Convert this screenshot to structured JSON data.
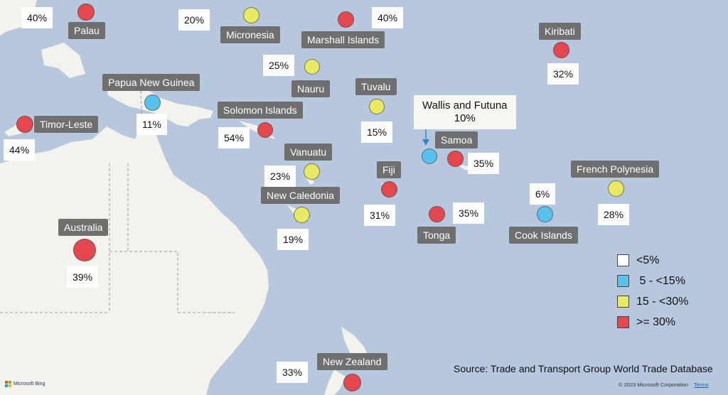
{
  "map": {
    "regions": [
      {
        "name": "Palau",
        "value": "40%",
        "category": ">= 30%"
      },
      {
        "name": "Micronesia",
        "value": "20%",
        "category": "15 - <30%"
      },
      {
        "name": "Marshall Islands",
        "value": "40%",
        "category": ">= 30%"
      },
      {
        "name": "Kiribati",
        "value": "32%",
        "category": ">= 30%"
      },
      {
        "name": "Nauru",
        "value": "25%",
        "category": "15 - <30%"
      },
      {
        "name": "Papua New Guinea",
        "value": "11%",
        "category": "5 - <15%"
      },
      {
        "name": "Tuvalu",
        "value": "15%",
        "category": "15 - <30%"
      },
      {
        "name": "Timor-Leste",
        "value": "44%",
        "category": ">= 30%"
      },
      {
        "name": "Solomon Islands",
        "value": "54%",
        "category": ">= 30%"
      },
      {
        "name": "Wallis and Futuna",
        "value": "10%",
        "category": "5 - <15%"
      },
      {
        "name": "Samoa",
        "value": "35%",
        "category": ">= 30%"
      },
      {
        "name": "Vanuatu",
        "value": "23%",
        "category": "15 - <30%"
      },
      {
        "name": "Fiji",
        "value": "31%",
        "category": ">= 30%"
      },
      {
        "name": "New Caledonia",
        "value": "19%",
        "category": "15 - <30%"
      },
      {
        "name": "French Polynesia",
        "value": "28%",
        "category": "15 - <30%"
      },
      {
        "name": "Tonga",
        "value": "35%",
        "category": ">= 30%"
      },
      {
        "name": "Cook Islands",
        "value": "6%",
        "category": "5 - <15%"
      },
      {
        "name": "Australia",
        "value": "39%",
        "category": ">= 30%"
      },
      {
        "name": "New Zealand",
        "value": "33%",
        "category": ">= 30%"
      }
    ],
    "source": "Source: Trade and Transport Group World Trade Database",
    "attribution": "Microsoft Bing",
    "copyright": "© 2023 Microsoft Corporation",
    "terms": "Terms"
  },
  "legend": [
    {
      "label": "<5%",
      "color": "#ffffff"
    },
    {
      "label": " 5 - <15%",
      "color": "#58c2ec"
    },
    {
      "label": "15 - <30%",
      "color": "#e9ea62"
    },
    {
      "label": ">= 30%",
      "color": "#e6474f"
    }
  ],
  "colors": {
    "ocean": "#b7c7dd",
    "land": "#f3f2ed",
    "red": "#e6474f",
    "yellow": "#e9ea62",
    "blue": "#58c2ec"
  }
}
